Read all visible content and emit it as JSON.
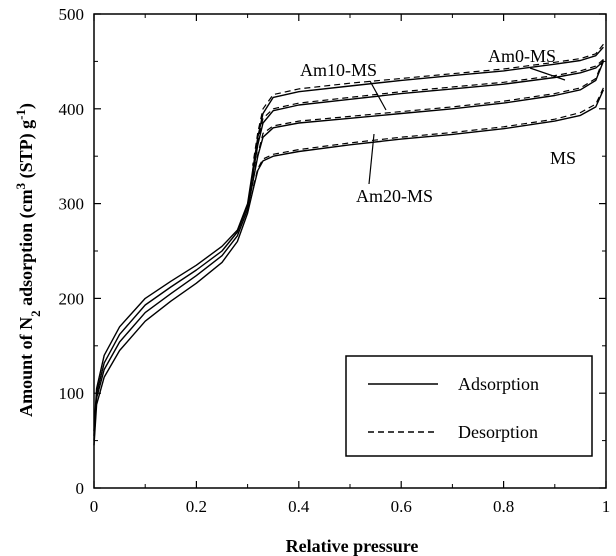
{
  "chart_data": {
    "type": "line",
    "xlabel": "Relative pressure",
    "ylabel": "Amount of N₂ adsorption (cm³ (STP) g⁻¹)",
    "ylabel_parts": {
      "a": "Amount of N",
      "b": "2",
      "c": " adsorption (cm",
      "d": "3",
      "e": " (STP) g",
      "f": "-1",
      "g": ")"
    },
    "xlim": [
      0,
      1
    ],
    "ylim": [
      0,
      500
    ],
    "x_ticks": [
      0,
      0.2,
      0.4,
      0.6,
      0.8,
      1
    ],
    "x_tick_labels": [
      "0",
      "0.2",
      "0.4",
      "0.6",
      "0.8",
      "1"
    ],
    "y_ticks": [
      0,
      100,
      200,
      300,
      400,
      500
    ],
    "y_tick_labels": [
      "0",
      "100",
      "200",
      "300",
      "400",
      "500"
    ],
    "grid": false,
    "legend": {
      "placement": "bottom-right",
      "entries": [
        {
          "label": "Adsorption",
          "style": "solid"
        },
        {
          "label": "Desorption",
          "style": "dashed"
        }
      ]
    },
    "series": [
      {
        "name": "Am0-MS",
        "adsorption": {
          "x": [
            0,
            0.005,
            0.02,
            0.05,
            0.1,
            0.15,
            0.2,
            0.25,
            0.28,
            0.3,
            0.31,
            0.32,
            0.33,
            0.35,
            0.4,
            0.5,
            0.6,
            0.7,
            0.8,
            0.9,
            0.95,
            0.98,
            0.995
          ],
          "y": [
            60,
            105,
            140,
            170,
            200,
            218,
            235,
            255,
            272,
            300,
            335,
            370,
            395,
            412,
            418,
            424,
            430,
            435,
            440,
            447,
            451,
            456,
            465
          ]
        },
        "desorption": {
          "x": [
            0.995,
            0.98,
            0.95,
            0.9,
            0.8,
            0.7,
            0.6,
            0.5,
            0.4,
            0.35,
            0.33,
            0.32,
            0.31
          ],
          "y": [
            468,
            458,
            453,
            449,
            442,
            437,
            432,
            427,
            421,
            415,
            400,
            375,
            340
          ]
        }
      },
      {
        "name": "Am10-MS",
        "adsorption": {
          "x": [
            0,
            0.005,
            0.02,
            0.05,
            0.1,
            0.15,
            0.2,
            0.25,
            0.28,
            0.3,
            0.31,
            0.32,
            0.33,
            0.35,
            0.4,
            0.5,
            0.6,
            0.7,
            0.8,
            0.9,
            0.95,
            0.98,
            0.995
          ],
          "y": [
            55,
            100,
            132,
            162,
            193,
            212,
            230,
            250,
            270,
            298,
            330,
            362,
            385,
            398,
            404,
            410,
            416,
            421,
            426,
            433,
            438,
            443,
            450
          ]
        },
        "desorption": {
          "x": [
            0.995,
            0.98,
            0.95,
            0.9,
            0.8,
            0.7,
            0.6,
            0.5,
            0.4,
            0.35,
            0.33,
            0.32,
            0.31
          ],
          "y": [
            452,
            445,
            440,
            435,
            428,
            423,
            418,
            412,
            406,
            400,
            390,
            366,
            335
          ]
        }
      },
      {
        "name": "Am20-MS",
        "adsorption": {
          "x": [
            0,
            0.005,
            0.02,
            0.05,
            0.1,
            0.15,
            0.2,
            0.25,
            0.28,
            0.3,
            0.31,
            0.32,
            0.33,
            0.35,
            0.4,
            0.5,
            0.6,
            0.7,
            0.8,
            0.9,
            0.95,
            0.98,
            0.995
          ],
          "y": [
            50,
            95,
            125,
            154,
            185,
            205,
            224,
            245,
            266,
            294,
            322,
            350,
            370,
            380,
            385,
            390,
            395,
            400,
            406,
            414,
            420,
            430,
            450
          ]
        },
        "desorption": {
          "x": [
            0.995,
            0.98,
            0.95,
            0.9,
            0.8,
            0.7,
            0.6,
            0.5,
            0.4,
            0.35,
            0.33,
            0.32,
            0.31
          ],
          "y": [
            452,
            432,
            422,
            416,
            408,
            402,
            397,
            392,
            387,
            382,
            374,
            352,
            325
          ]
        }
      },
      {
        "name": "MS",
        "adsorption": {
          "x": [
            0,
            0.005,
            0.02,
            0.05,
            0.1,
            0.15,
            0.2,
            0.25,
            0.28,
            0.3,
            0.31,
            0.32,
            0.33,
            0.35,
            0.4,
            0.5,
            0.6,
            0.7,
            0.8,
            0.9,
            0.95,
            0.98,
            0.995
          ],
          "y": [
            45,
            88,
            117,
            145,
            176,
            197,
            216,
            238,
            260,
            290,
            313,
            335,
            345,
            350,
            355,
            362,
            368,
            373,
            379,
            387,
            393,
            402,
            420
          ]
        },
        "desorption": {
          "x": [
            0.995,
            0.98,
            0.95,
            0.9,
            0.8,
            0.7,
            0.6,
            0.5,
            0.4,
            0.35,
            0.33,
            0.32,
            0.31
          ],
          "y": [
            422,
            405,
            396,
            389,
            381,
            375,
            370,
            364,
            357,
            352,
            347,
            337,
            315
          ]
        }
      }
    ],
    "annotations": [
      {
        "text": "Am0-MS",
        "target_series": "Am0-MS"
      },
      {
        "text": "Am10-MS",
        "target_series": "Am10-MS"
      },
      {
        "text": "Am20-MS",
        "target_series": "Am20-MS"
      },
      {
        "text": "MS",
        "target_series": "MS"
      }
    ]
  }
}
